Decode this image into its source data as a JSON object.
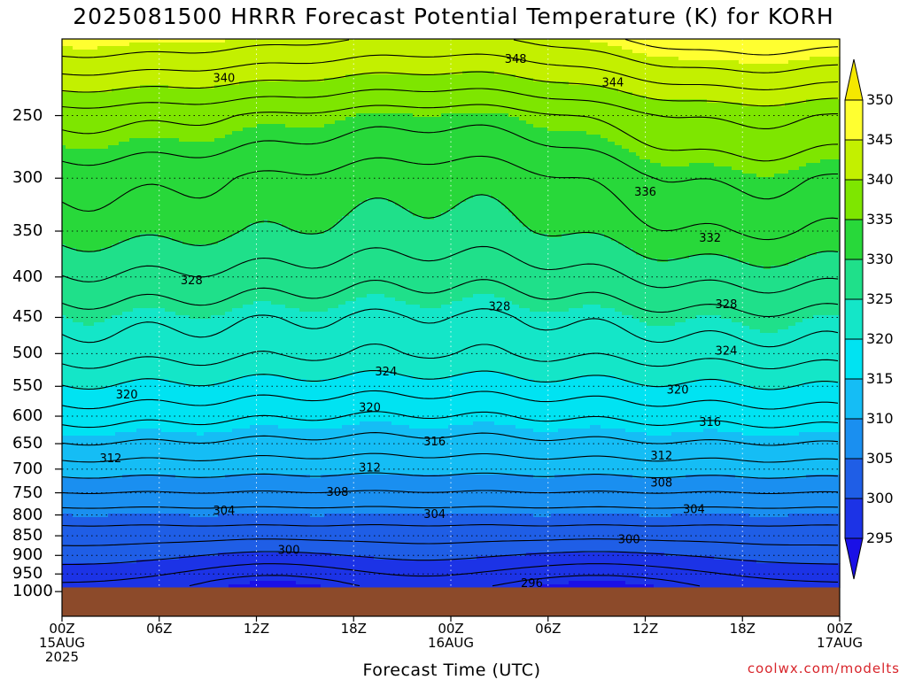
{
  "title": "2025081500 HRRR Forecast Potential Temperature (K) for KORH",
  "x_axis_label": "Forecast Time (UTC)",
  "credit": "coolwx.com/modelts",
  "colors": {
    "ground": "#8c4a2a",
    "contour_line": "#000000",
    "credit": "#d8252b"
  },
  "colorbar": {
    "labels": [
      "350",
      "345",
      "340",
      "335",
      "330",
      "325",
      "320",
      "315",
      "310",
      "305",
      "300",
      "295"
    ],
    "colors": [
      "#f5e800",
      "#ffff30",
      "#c3f000",
      "#7ee600",
      "#28d83a",
      "#1fe08a",
      "#14e6c8",
      "#00e3f2",
      "#15bdf5",
      "#1a8ff0",
      "#1f5ee6",
      "#1c33e6",
      "#1a10e6"
    ]
  },
  "chart_data": {
    "type": "heatmap",
    "title": "2025081500 HRRR Forecast Potential Temperature (K) for KORH",
    "xlabel": "Forecast Time (UTC)",
    "ylabel": "",
    "x_tick_labels": [
      {
        "hour": 0,
        "lines": [
          "00Z",
          "15AUG",
          "2025"
        ]
      },
      {
        "hour": 6,
        "lines": [
          "06Z"
        ]
      },
      {
        "hour": 12,
        "lines": [
          "12Z"
        ]
      },
      {
        "hour": 18,
        "lines": [
          "18Z"
        ]
      },
      {
        "hour": 24,
        "lines": [
          "00Z",
          "16AUG"
        ]
      },
      {
        "hour": 30,
        "lines": [
          "06Z"
        ]
      },
      {
        "hour": 36,
        "lines": [
          "12Z"
        ]
      },
      {
        "hour": 42,
        "lines": [
          "18Z"
        ]
      },
      {
        "hour": 48,
        "lines": [
          "00Z",
          "17AUG"
        ]
      }
    ],
    "x_range_hours": [
      0,
      48
    ],
    "y_axis_pressure_hPa": [
      250,
      300,
      350,
      400,
      450,
      500,
      550,
      600,
      650,
      700,
      750,
      800,
      850,
      900,
      950,
      1000
    ],
    "y_range_hPa": [
      200,
      1000
    ],
    "y_scale": "log-pressure",
    "grid": true,
    "colorbar_levels_K": [
      295,
      300,
      305,
      310,
      315,
      320,
      325,
      330,
      335,
      340,
      345,
      350
    ],
    "contour_interval_K": 2,
    "surface_pressure_hPa": 988,
    "theta_profile_start": [
      {
        "p": 1000,
        "K": 297
      },
      {
        "p": 950,
        "K": 299
      },
      {
        "p": 900,
        "K": 301
      },
      {
        "p": 850,
        "K": 303
      },
      {
        "p": 800,
        "K": 305
      },
      {
        "p": 750,
        "K": 308
      },
      {
        "p": 700,
        "K": 311
      },
      {
        "p": 650,
        "K": 314
      },
      {
        "p": 600,
        "K": 317
      },
      {
        "p": 550,
        "K": 320
      },
      {
        "p": 500,
        "K": 323
      },
      {
        "p": 450,
        "K": 325
      },
      {
        "p": 400,
        "K": 328
      },
      {
        "p": 350,
        "K": 331
      },
      {
        "p": 300,
        "K": 333
      },
      {
        "p": 250,
        "K": 337
      },
      {
        "p": 200,
        "K": 346
      }
    ],
    "contour_labels": [
      {
        "text": "348",
        "hour": 28,
        "p": 212
      },
      {
        "text": "340",
        "hour": 10,
        "p": 224
      },
      {
        "text": "344",
        "hour": 34,
        "p": 227
      },
      {
        "text": "336",
        "hour": 36,
        "p": 312
      },
      {
        "text": "332",
        "hour": 40,
        "p": 357
      },
      {
        "text": "328",
        "hour": 8,
        "p": 404
      },
      {
        "text": "328",
        "hour": 27,
        "p": 436
      },
      {
        "text": "328",
        "hour": 41,
        "p": 433
      },
      {
        "text": "324",
        "hour": 20,
        "p": 527
      },
      {
        "text": "324",
        "hour": 41,
        "p": 496
      },
      {
        "text": "320",
        "hour": 4,
        "p": 563
      },
      {
        "text": "320",
        "hour": 19,
        "p": 585
      },
      {
        "text": "320",
        "hour": 38,
        "p": 555
      },
      {
        "text": "316",
        "hour": 23,
        "p": 646
      },
      {
        "text": "316",
        "hour": 40,
        "p": 610
      },
      {
        "text": "312",
        "hour": 3,
        "p": 678
      },
      {
        "text": "312",
        "hour": 19,
        "p": 697
      },
      {
        "text": "312",
        "hour": 37,
        "p": 673
      },
      {
        "text": "308",
        "hour": 17,
        "p": 748
      },
      {
        "text": "308",
        "hour": 37,
        "p": 728
      },
      {
        "text": "304",
        "hour": 10,
        "p": 790
      },
      {
        "text": "304",
        "hour": 23,
        "p": 798
      },
      {
        "text": "304",
        "hour": 39,
        "p": 786
      },
      {
        "text": "300",
        "hour": 14,
        "p": 885
      },
      {
        "text": "300",
        "hour": 35,
        "p": 859
      },
      {
        "text": "296",
        "hour": 29,
        "p": 976
      }
    ]
  }
}
